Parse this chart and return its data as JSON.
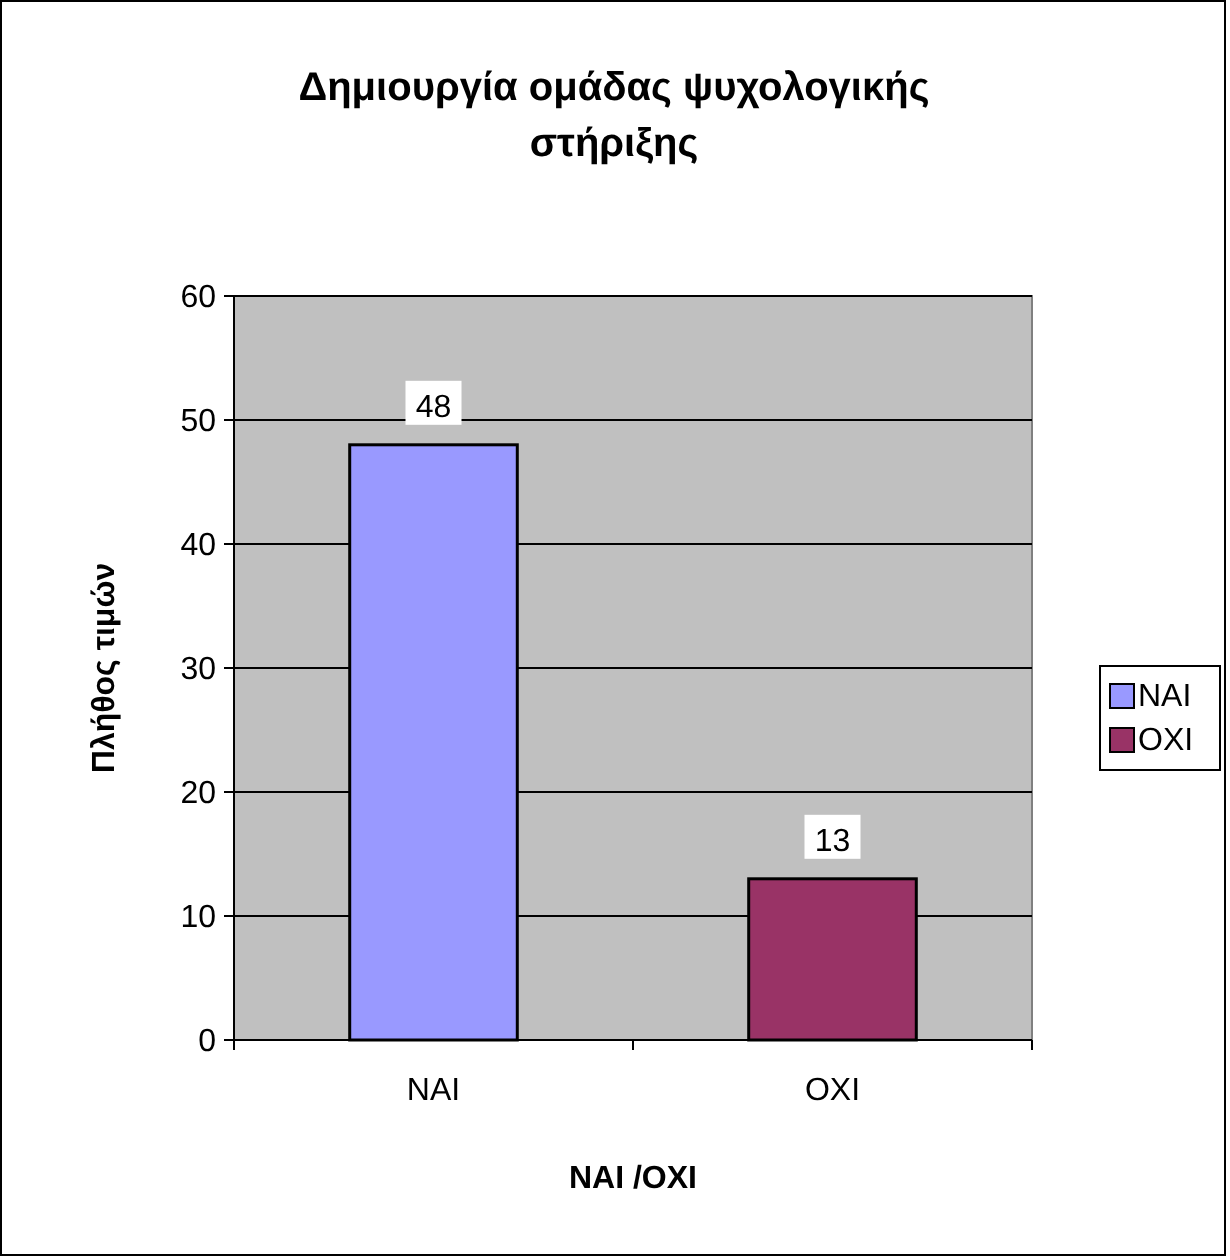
{
  "chart_data": {
    "type": "bar",
    "title": "Δημιουργία ομάδας ψυχολογικής στήριξης",
    "xlabel": "NAI /OXI",
    "ylabel": "Πλήθος τιμών",
    "categories": [
      "NAI",
      "OXI"
    ],
    "series": [
      {
        "name": "NAI",
        "color": "#9999ff",
        "values": [
          48,
          null
        ]
      },
      {
        "name": "OXI",
        "color": "#993366",
        "values": [
          null,
          13
        ]
      }
    ],
    "stacked": true,
    "ylim": [
      0,
      60
    ],
    "yticks": [
      0,
      10,
      20,
      30,
      40,
      50,
      60
    ],
    "grid": "y",
    "legend": "right",
    "data_labels": true
  }
}
